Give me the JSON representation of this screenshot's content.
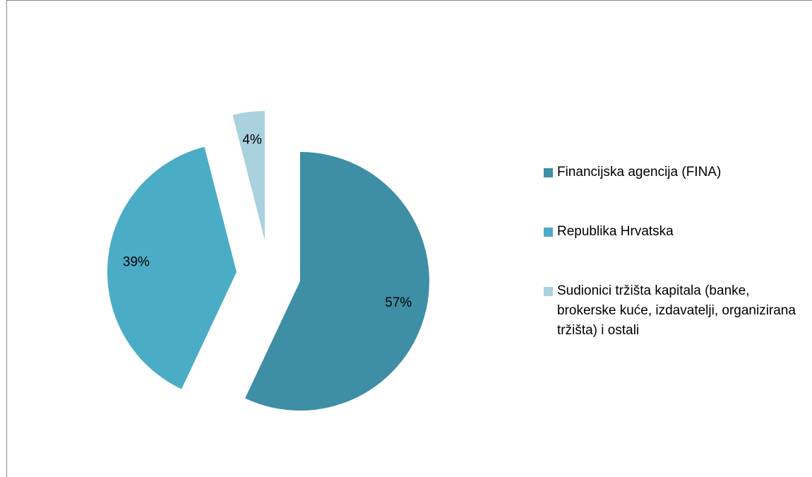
{
  "chart_data": {
    "type": "pie",
    "categories": [
      "Financijska agencija (FINA)",
      "Republika Hrvatska",
      "Sudionici tržišta kapitala (banke, brokerske kuće, izdavatelji, organizirana tržišta) i ostali"
    ],
    "values": [
      57,
      39,
      4
    ],
    "value_labels": [
      "57%",
      "39%",
      "4%"
    ],
    "colors": [
      "#3e8ea5",
      "#4bacc6",
      "#a9d1de"
    ]
  }
}
